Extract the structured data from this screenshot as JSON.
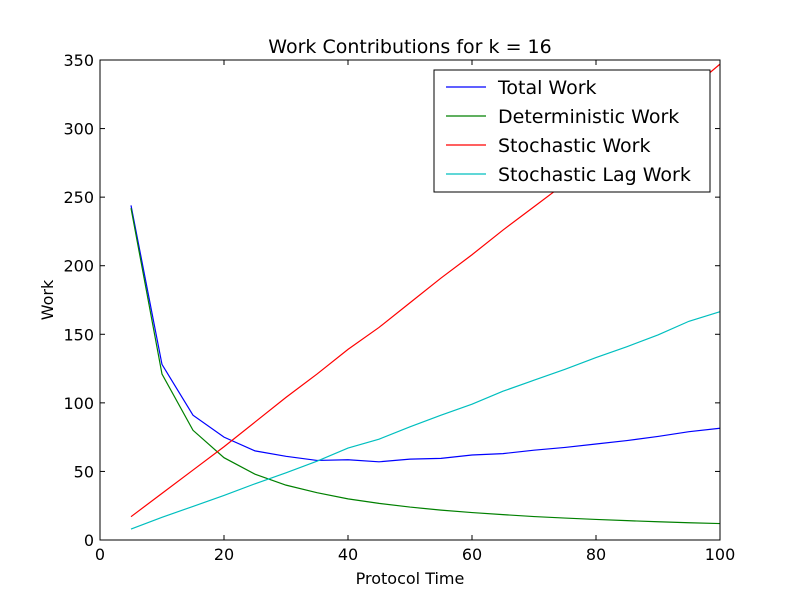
{
  "chart_data": {
    "type": "line",
    "title": "Work Contributions for k = 16",
    "xlabel": "Protocol Time",
    "ylabel": "Work",
    "xlim": [
      0,
      100
    ],
    "ylim": [
      0,
      350
    ],
    "xticks": [
      0,
      20,
      40,
      60,
      80,
      100
    ],
    "yticks": [
      0,
      50,
      100,
      150,
      200,
      250,
      300,
      350
    ],
    "grid": false,
    "legend_position": "top-right",
    "x": [
      5,
      10,
      15,
      20,
      25,
      30,
      35,
      40,
      45,
      50,
      55,
      60,
      65,
      70,
      75,
      80,
      85,
      90,
      95,
      100
    ],
    "series": [
      {
        "name": "Total Work",
        "color": "#0000ff",
        "values": [
          244,
          128,
          91,
          75,
          65,
          61,
          58,
          58.5,
          57,
          59,
          59.5,
          62,
          63,
          65.5,
          67.5,
          70,
          72.5,
          75.5,
          79,
          81.5
        ]
      },
      {
        "name": "Deterministic Work",
        "color": "#008000",
        "values": [
          242,
          121,
          80,
          60,
          48,
          40,
          34.5,
          30,
          26.7,
          24,
          21.8,
          20,
          18.5,
          17.1,
          16,
          15,
          14.1,
          13.3,
          12.6,
          12
        ]
      },
      {
        "name": "Stochastic Work",
        "color": "#ff0000",
        "values": [
          17,
          34,
          51,
          68,
          86,
          104,
          121,
          139,
          155,
          173,
          191,
          208,
          226,
          243,
          260,
          277,
          294,
          311,
          328,
          347
        ]
      },
      {
        "name": "Stochastic Lag Work",
        "color": "#00bfbf",
        "values": [
          8,
          16.5,
          24.5,
          32.5,
          41,
          49,
          57.5,
          67,
          73.5,
          82.5,
          91,
          99,
          108.5,
          116.5,
          124.5,
          133,
          141,
          149.5,
          159.5,
          166.5
        ]
      }
    ]
  }
}
